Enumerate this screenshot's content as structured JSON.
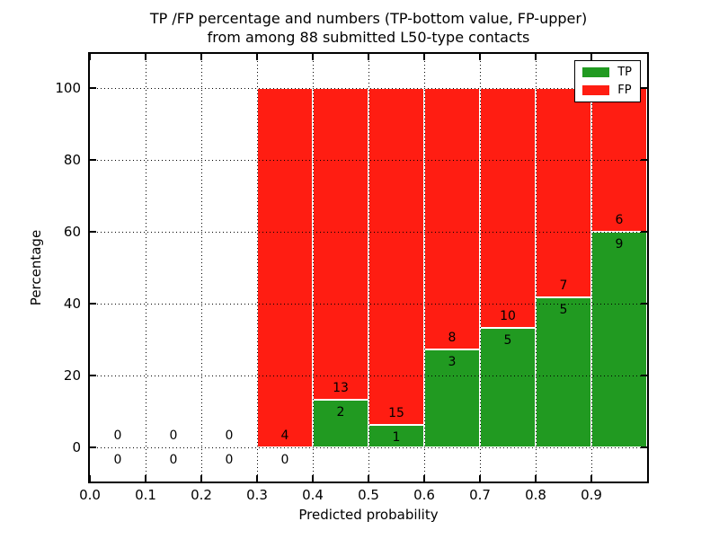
{
  "title": {
    "line1": "TP /FP percentage and numbers (TP-bottom value, FP-upper)",
    "line2": "from among 88 submitted L50-type contacts"
  },
  "axes": {
    "xlabel": "Predicted probability",
    "ylabel": "Percentage",
    "xtick_labels": [
      "0.0",
      "0.1",
      "0.2",
      "0.3",
      "0.4",
      "0.5",
      "0.6",
      "0.7",
      "0.8",
      "0.9"
    ],
    "ytick_labels": [
      "0",
      "20",
      "40",
      "60",
      "80",
      "100"
    ]
  },
  "legend": {
    "items": [
      {
        "label": "TP",
        "color": "#219a21"
      },
      {
        "label": "FP",
        "color": "#ff1d12"
      }
    ]
  },
  "colors": {
    "tp_green": "#219a21",
    "fp_red": "#ff1d12",
    "text": "#000000",
    "background": "#ffffff"
  },
  "chart_data": {
    "type": "bar",
    "stacked": true,
    "normalized_to_percent": true,
    "title": "TP /FP percentage and numbers (TP-bottom value, FP-upper) from among 88 submitted L50-type contacts",
    "xlabel": "Predicted probability",
    "ylabel": "Percentage",
    "xlim": [
      0.0,
      1.0
    ],
    "ylim": [
      -11,
      110
    ],
    "grid": "dotted",
    "legend_position": "upper right",
    "total_contacts": 88,
    "bin_edges": [
      0.0,
      0.1,
      0.2,
      0.3,
      0.4,
      0.5,
      0.6,
      0.7,
      0.8,
      0.9,
      1.0
    ],
    "series": [
      {
        "name": "TP",
        "color": "#219a21",
        "counts": [
          0,
          0,
          0,
          0,
          2,
          1,
          3,
          5,
          5,
          9
        ],
        "percent_heights": [
          0,
          0,
          0,
          0,
          13.33,
          6.25,
          27.27,
          33.33,
          41.67,
          60.0
        ]
      },
      {
        "name": "FP",
        "color": "#ff1d12",
        "counts": [
          0,
          0,
          0,
          4,
          13,
          15,
          8,
          10,
          7,
          6
        ],
        "percent_heights": [
          0,
          0,
          0,
          100,
          86.67,
          93.75,
          72.73,
          66.67,
          58.33,
          40.0
        ]
      }
    ]
  }
}
